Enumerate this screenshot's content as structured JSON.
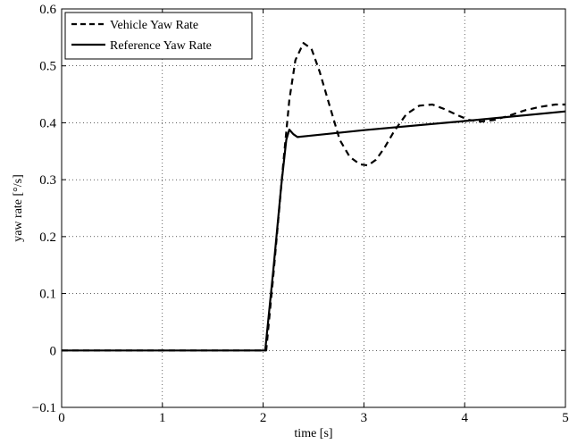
{
  "chart_data": {
    "type": "line",
    "title": "",
    "xlabel": "time [s]",
    "ylabel": "yaw rate [°/s]",
    "xlim": [
      0,
      5
    ],
    "ylim": [
      -0.1,
      0.6
    ],
    "xticks": [
      0,
      1,
      2,
      3,
      4,
      5
    ],
    "xtick_labels": [
      "0",
      "1",
      "2",
      "3",
      "4",
      "5"
    ],
    "yticks": [
      -0.1,
      0,
      0.1,
      0.2,
      0.3,
      0.4,
      0.5,
      0.6
    ],
    "ytick_labels": [
      "−0.1",
      "0",
      "0.1",
      "0.2",
      "0.3",
      "0.4",
      "0.5",
      "0.6"
    ],
    "grid": true,
    "legend_position": "top-left",
    "series": [
      {
        "name": "Vehicle Yaw Rate",
        "style": "dashed",
        "color": "#000000",
        "x": [
          0,
          2.0,
          2.03,
          2.1,
          2.2,
          2.26,
          2.32,
          2.4,
          2.48,
          2.56,
          2.66,
          2.76,
          2.86,
          2.96,
          3.04,
          3.12,
          3.2,
          3.3,
          3.42,
          3.55,
          3.68,
          3.8,
          3.92,
          4.04,
          4.16,
          4.3,
          4.45,
          4.6,
          4.75,
          4.9,
          5.0
        ],
        "values": [
          0,
          0,
          0.0,
          0.13,
          0.33,
          0.44,
          0.51,
          0.54,
          0.53,
          0.49,
          0.43,
          0.37,
          0.34,
          0.327,
          0.325,
          0.335,
          0.355,
          0.385,
          0.415,
          0.43,
          0.432,
          0.424,
          0.414,
          0.405,
          0.402,
          0.405,
          0.413,
          0.422,
          0.428,
          0.432,
          0.432
        ]
      },
      {
        "name": "Reference Yaw Rate",
        "style": "solid",
        "color": "#000000",
        "x": [
          0,
          2.0,
          2.02,
          2.1,
          2.18,
          2.23,
          2.26,
          2.3,
          2.34,
          2.4,
          3.0,
          4.0,
          5.0
        ],
        "values": [
          0,
          0,
          0.0,
          0.14,
          0.29,
          0.37,
          0.388,
          0.38,
          0.375,
          0.376,
          0.387,
          0.403,
          0.42
        ]
      }
    ]
  }
}
